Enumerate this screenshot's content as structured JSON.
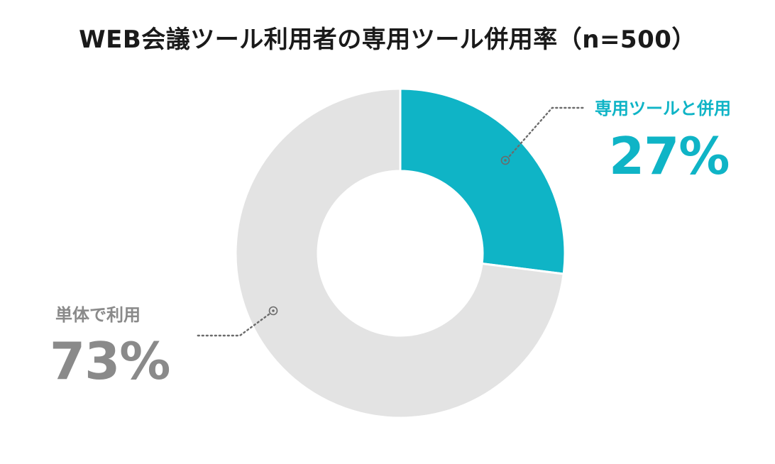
{
  "chart_data": {
    "type": "pie",
    "title": "WEB会議ツール利用者の専用ツール併用率（n=500）",
    "donut": true,
    "start_angle_deg": 0,
    "slices": [
      {
        "label": "専用ツールと併用",
        "value": 27,
        "value_label": "27%",
        "color": "#0fb4c6"
      },
      {
        "label": "単体で利用",
        "value": 73,
        "value_label": "73%",
        "color": "#e3e3e3"
      }
    ]
  }
}
